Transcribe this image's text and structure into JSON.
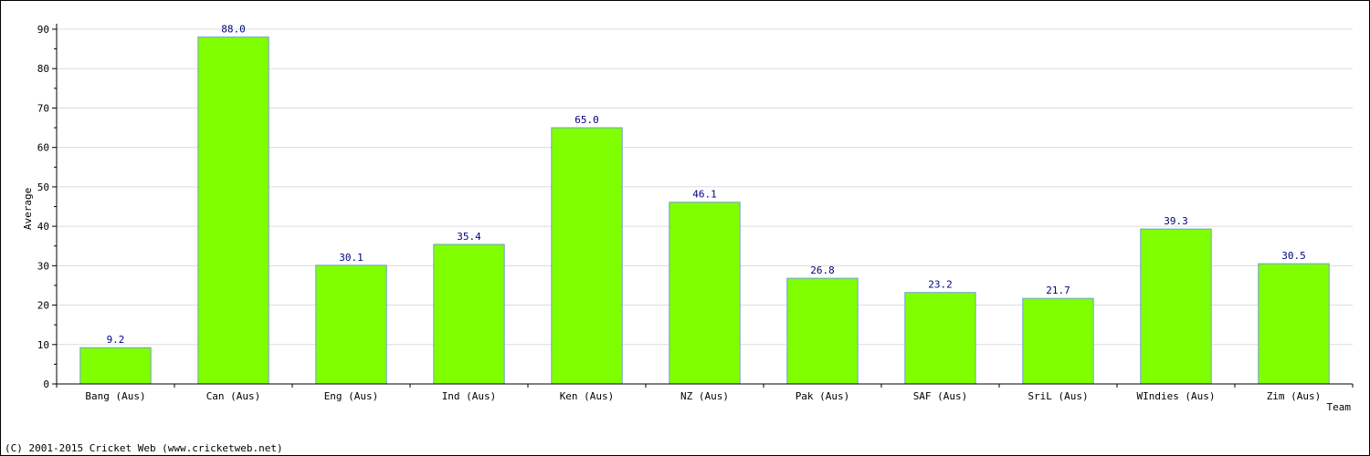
{
  "chart_data": {
    "type": "bar",
    "title": "",
    "xlabel": "Team",
    "ylabel": "Average",
    "ylim": [
      0,
      90
    ],
    "yticks": [
      0,
      10,
      20,
      30,
      40,
      50,
      60,
      70,
      80,
      90
    ],
    "grid": true,
    "categories": [
      "Bang (Aus)",
      "Can (Aus)",
      "Eng (Aus)",
      "Ind (Aus)",
      "Ken (Aus)",
      "NZ (Aus)",
      "Pak (Aus)",
      "SAF (Aus)",
      "SriL (Aus)",
      "WIndies (Aus)",
      "Zim (Aus)"
    ],
    "values": [
      9.2,
      88.0,
      30.1,
      35.4,
      65.0,
      46.1,
      26.8,
      23.2,
      21.7,
      39.3,
      30.5
    ],
    "data_labels": [
      "9.2",
      "88.0",
      "30.1",
      "35.4",
      "65.0",
      "46.1",
      "26.8",
      "23.2",
      "21.7",
      "39.3",
      "30.5"
    ],
    "bar_color": "#7fff00",
    "bar_edge_color": "#6f9fcf",
    "label_color": "#000080"
  },
  "footer": {
    "copyright": "(C) 2001-2015 Cricket Web (www.cricketweb.net)"
  }
}
